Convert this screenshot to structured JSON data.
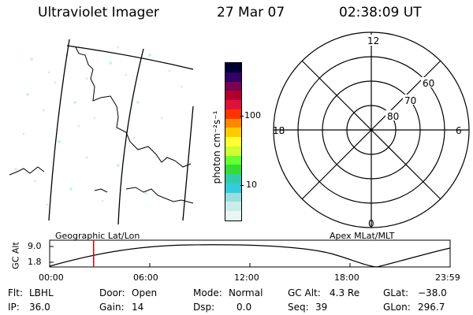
{
  "header": {
    "title": "Ultraviolet Imager",
    "date": "27 Mar 07",
    "time": "02:38:09 UT"
  },
  "colorbar": {
    "unit_label": "photon cm⁻²s⁻¹",
    "ticks": [
      {
        "label": "100",
        "value": 100
      },
      {
        "label": "10",
        "value": 10
      }
    ],
    "colors": [
      "#000033",
      "#330066",
      "#7a0050",
      "#b0002a",
      "#e0103a",
      "#ff3300",
      "#ff8800",
      "#ffcc00",
      "#ffff33",
      "#ccff33",
      "#66ff33",
      "#33dd33",
      "#33ccaa",
      "#33ccdd",
      "#99dddd",
      "#ccecec",
      "#eaf6f6"
    ]
  },
  "polar_plot": {
    "mlt_labels": {
      "top": "12",
      "left": "18",
      "right": "6",
      "bottom": "0"
    },
    "lat_labels": [
      "60",
      "70",
      "80"
    ]
  },
  "timeline": {
    "left_label": "Geographic Lat/Lon",
    "right_label": "Apex MLat/MLT",
    "y_axis_label": "GC Alt",
    "y_ticks": [
      "9.0",
      "1.8"
    ],
    "x_ticks": [
      "00:00",
      "06:00",
      "12:00",
      "18:00",
      "23:59"
    ],
    "current_time": "02:38",
    "marker_color": "#dd0000"
  },
  "status": {
    "flt_label": "Flt:",
    "flt_value": "LBHL",
    "ip_label": "IP:",
    "ip_value": "36.0",
    "door_label": "Door:",
    "door_value": "Open",
    "gain_label": "Gain:",
    "gain_value": "14",
    "mode_label": "Mode:",
    "mode_value": "Normal",
    "dsp_label": "Dsp:",
    "dsp_value": "0.0",
    "gcalt_label": "GC Alt:",
    "gcalt_value": "4.3 Re",
    "seq_label": "Seq:",
    "seq_value": "39",
    "glat_label": "GLat:",
    "glat_value": "−38.0",
    "glon_label": "GLon:",
    "glon_value": "296.7"
  }
}
